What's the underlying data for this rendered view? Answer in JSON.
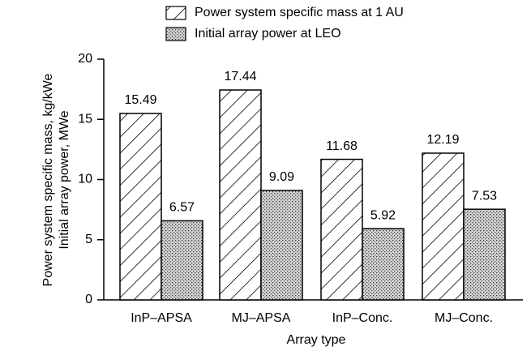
{
  "chart_data": {
    "type": "bar",
    "y_label": [
      "Power system specific mass, kg/kWe",
      "Initial array power, MWe"
    ],
    "x_label": "Array type",
    "categories": [
      "InP–APSA",
      "MJ–APSA",
      "InP–Conc.",
      "MJ–Conc."
    ],
    "series": [
      {
        "name": "Power system specific mass at 1 AU",
        "values": [
          15.49,
          17.44,
          11.68,
          12.19
        ]
      },
      {
        "name": "Initial array power at LEO",
        "values": [
          6.57,
          9.09,
          5.92,
          7.53
        ]
      }
    ],
    "ylim": [
      0,
      20
    ],
    "yticks": [
      0,
      5,
      10,
      15,
      20
    ],
    "legend": "top"
  }
}
